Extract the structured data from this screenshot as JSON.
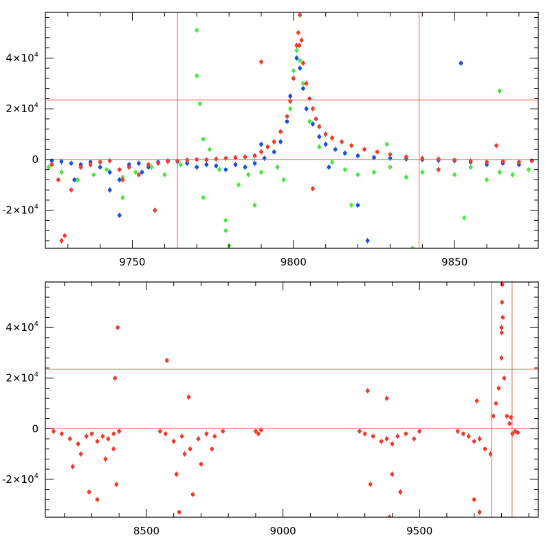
{
  "colors": {
    "red": "#f23a2a",
    "blue": "#1550e6",
    "green": "#46ea3c",
    "refline": "#f2553f",
    "frame": "#000000"
  },
  "chart_data": [
    {
      "type": "scatter",
      "name": "top-panel",
      "title": "",
      "xlabel": "",
      "ylabel": "",
      "xlim": [
        9723,
        9876
      ],
      "ylim": [
        -35000,
        58000
      ],
      "x_ticks": [
        9750,
        9800,
        9850
      ],
      "x_tick_labels": [
        "9750",
        "9800",
        "9850"
      ],
      "y_ticks": [
        -20000,
        0,
        20000,
        40000
      ],
      "y_tick_labels": [
        {
          "mantissa": "-2×10",
          "exp": "4"
        },
        {
          "mantissa": "0",
          "exp": ""
        },
        {
          "mantissa": "2×10",
          "exp": "4"
        },
        {
          "mantissa": "4×10",
          "exp": "4"
        }
      ],
      "hlines": [
        0,
        23500
      ],
      "vlines": [
        9764,
        9839
      ],
      "series": [
        {
          "name": "blue",
          "color": "#1550e6",
          "x": [
            9725,
            9728,
            9731,
            9734,
            9737,
            9740,
            9743,
            9746,
            9749,
            9752,
            9755,
            9758,
            9761,
            9764,
            9767,
            9770,
            9773,
            9776,
            9779,
            9782,
            9785,
            9788,
            9791,
            9794,
            9796,
            9798,
            9799,
            9800,
            9801,
            9802,
            9803,
            9804,
            9806,
            9808,
            9810,
            9813,
            9816,
            9820,
            9825,
            9830,
            9835,
            9840,
            9845,
            9850,
            9855,
            9860,
            9865,
            9870,
            9874,
            9732,
            9743,
            9746,
            9753,
            9790,
            9820,
            9852,
            9811,
            9823
          ],
          "y": [
            -500,
            -800,
            -1500,
            -2000,
            -1000,
            -3000,
            -5000,
            -8000,
            -2000,
            -1500,
            -3000,
            -1000,
            -500,
            -800,
            -1500,
            -3000,
            -2000,
            -2500,
            -4000,
            -2000,
            -3000,
            -1500,
            500,
            3000,
            7000,
            15000,
            25000,
            32000,
            40000,
            36000,
            28000,
            20000,
            14000,
            9000,
            6000,
            4000,
            2500,
            1500,
            800,
            500,
            200,
            0,
            -300,
            -500,
            -1000,
            -2000,
            -1500,
            -2000,
            -500,
            -8000,
            -12000,
            -22000,
            -5000,
            6000,
            -18000,
            38000,
            -3000,
            -32000
          ]
        },
        {
          "name": "green",
          "color": "#46ea3c",
          "x": [
            9724,
            9728,
            9733,
            9738,
            9742,
            9747,
            9751,
            9756,
            9760,
            9765,
            9770,
            9770,
            9771,
            9772,
            9774,
            9777,
            9779,
            9780,
            9783,
            9786,
            9790,
            9795,
            9799,
            9800,
            9801,
            9802,
            9803,
            9805,
            9808,
            9812,
            9816,
            9820,
            9825,
            9830,
            9835,
            9840,
            9845,
            9850,
            9855,
            9860,
            9864,
            9868,
            9873,
            9747,
            9757,
            9772,
            9779,
            9788,
            9797,
            9818,
            9829,
            9837,
            9853,
            9864
          ],
          "y": [
            -3000,
            -5000,
            -8000,
            -6000,
            -4000,
            -7000,
            -5000,
            -3000,
            -6000,
            -2000,
            51000,
            33000,
            22000,
            8000,
            4000,
            -4000,
            -24000,
            -34000,
            -10000,
            -6000,
            -5000,
            -3000,
            20000,
            35000,
            43000,
            39000,
            30000,
            15000,
            5000,
            -1000,
            -4000,
            -6000,
            -5000,
            -3000,
            -7000,
            -5000,
            -4000,
            -6000,
            -3000,
            -8000,
            -5000,
            -6000,
            -4000,
            -15000,
            -20000,
            -15000,
            -28000,
            -18000,
            -8000,
            -18000,
            6000,
            -35000,
            -23000,
            27000
          ]
        },
        {
          "name": "red",
          "color": "#f23a2a",
          "x": [
            9725,
            9727,
            9729,
            9731,
            9734,
            9737,
            9740,
            9743,
            9746,
            9749,
            9752,
            9755,
            9758,
            9761,
            9764,
            9767,
            9770,
            9773,
            9776,
            9779,
            9782,
            9785,
            9788,
            9790,
            9792,
            9794,
            9796,
            9798,
            9799,
            9800,
            9801,
            9801.5,
            9802,
            9802.5,
            9803,
            9804,
            9805,
            9806,
            9807,
            9808,
            9810,
            9812,
            9815,
            9818,
            9822,
            9826,
            9830,
            9835,
            9840,
            9845,
            9850,
            9855,
            9860,
            9865,
            9870,
            9874,
            9790,
            9801.8,
            9806,
            9845,
            9863,
            9728,
            9747,
            9757
          ],
          "y": [
            -2000,
            -8000,
            -30000,
            -12000,
            -3000,
            -2000,
            -1000,
            -500,
            -4000,
            -3000,
            -6000,
            -2000,
            -1500,
            -800,
            -500,
            -200,
            0,
            -100,
            200,
            500,
            800,
            1000,
            1500,
            3000,
            5000,
            7000,
            11000,
            17000,
            23000,
            32000,
            45000,
            50000,
            57000,
            47000,
            38000,
            30000,
            24000,
            20000,
            16000,
            13000,
            10000,
            8500,
            7000,
            5500,
            4000,
            3000,
            2000,
            1000,
            500,
            200,
            -200,
            -500,
            -1000,
            -800,
            -1000,
            -500,
            38500,
            45000,
            -11500,
            -4000,
            5500,
            -32000,
            -8000,
            -20000
          ]
        }
      ]
    },
    {
      "type": "scatter",
      "name": "bottom-panel",
      "title": "",
      "xlabel": "",
      "ylabel": "",
      "xlim": [
        8130,
        9935
      ],
      "ylim": [
        -35000,
        58000
      ],
      "x_ticks": [
        8500,
        9000,
        9500
      ],
      "x_tick_labels": [
        "8500",
        "9000",
        "9500"
      ],
      "y_ticks": [
        -20000,
        0,
        20000,
        40000
      ],
      "y_tick_labels": [
        {
          "mantissa": "-2×10",
          "exp": "4"
        },
        {
          "mantissa": "0",
          "exp": ""
        },
        {
          "mantissa": "2×10",
          "exp": "4"
        },
        {
          "mantissa": "4×10",
          "exp": "4"
        }
      ],
      "hlines": [
        0,
        23500
      ],
      "vlines": [
        9764,
        9839
      ],
      "series": [
        {
          "name": "red",
          "color": "#f23a2a",
          "x": [
            8160,
            8190,
            8220,
            8250,
            8280,
            8300,
            8320,
            8340,
            8360,
            8380,
            8400,
            8230,
            8260,
            8290,
            8320,
            8350,
            8390,
            8395,
            8380,
            8385,
            8550,
            8570,
            8600,
            8630,
            8660,
            8690,
            8720,
            8750,
            8780,
            8575,
            8610,
            8640,
            8670,
            8700,
            8740,
            8655,
            8620,
            8900,
            8910,
            8920,
            9280,
            9300,
            9330,
            9360,
            9380,
            9400,
            9420,
            9450,
            9480,
            9500,
            9310,
            9380,
            9390,
            9400,
            9320,
            9430,
            9640,
            9660,
            9680,
            9700,
            9720,
            9740,
            9760,
            9770,
            9780,
            9790,
            9800,
            9801,
            9802,
            9803,
            9805,
            9810,
            9820,
            9830,
            9840,
            9850,
            9860,
            9700,
            9710,
            9720,
            9800,
            9835
          ],
          "y": [
            -1000,
            -2000,
            -4000,
            -6000,
            -3000,
            -2000,
            -5000,
            -3000,
            -4000,
            -2000,
            -1000,
            -15000,
            -10000,
            -25000,
            -28000,
            -12000,
            -22000,
            40000,
            -8000,
            20000,
            -1000,
            -2000,
            -5000,
            -3000,
            -8000,
            -4000,
            -2000,
            -3000,
            -1000,
            27000,
            -18000,
            -10000,
            -26000,
            -14000,
            -8000,
            12500,
            -33000,
            -1000,
            -2000,
            -500,
            -1000,
            -2000,
            -3000,
            -5000,
            -4000,
            -6000,
            -3000,
            -2000,
            -4000,
            -1000,
            15000,
            12000,
            -35000,
            -18000,
            -22000,
            -25000,
            -1000,
            -2000,
            -3000,
            -5000,
            -4000,
            -8000,
            -10000,
            5000,
            10000,
            16000,
            28000,
            38000,
            50000,
            57000,
            44000,
            20000,
            5000,
            2000,
            -2000,
            -1000,
            -1500,
            -28000,
            11000,
            -33000,
            40000,
            4500
          ]
        }
      ]
    }
  ]
}
